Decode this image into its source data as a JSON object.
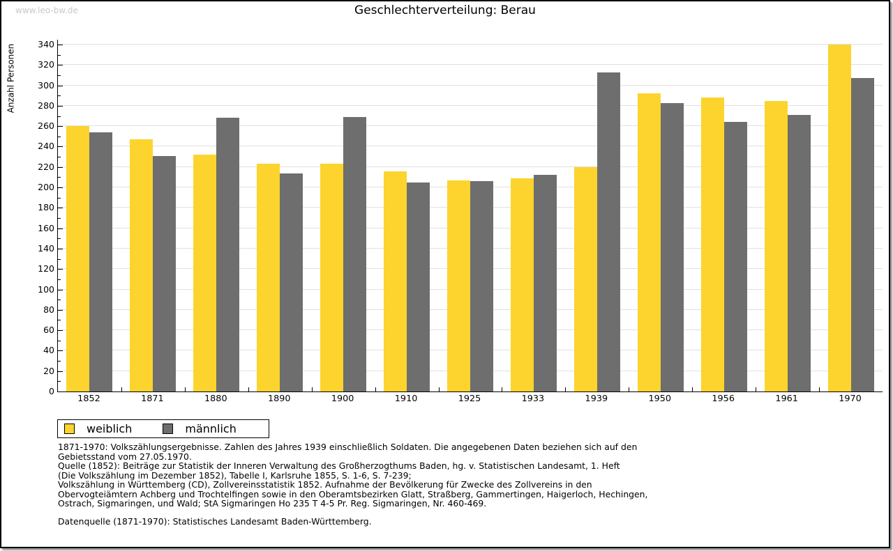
{
  "page": {
    "watermark": "www.leo-bw.de",
    "title": "Geschlechterverteilung: Berau"
  },
  "chart_data": {
    "type": "bar",
    "title": "Geschlechterverteilung: Berau",
    "xlabel": "",
    "ylabel": "Anzahl Personen",
    "ylim": [
      0,
      340
    ],
    "ytick_major": 20,
    "ytick_minor": 10,
    "grid": true,
    "legend_position": "bottom-left",
    "categories": [
      "1852",
      "1871",
      "1880",
      "1890",
      "1900",
      "1910",
      "1925",
      "1933",
      "1939",
      "1950",
      "1956",
      "1961",
      "1970"
    ],
    "series": [
      {
        "name": "weiblich",
        "color": "#fcd42d",
        "values": [
          260,
          247,
          232,
          223,
          223,
          216,
          207,
          209,
          220,
          292,
          288,
          285,
          340
        ]
      },
      {
        "name": "männlich",
        "color": "#6e6e6e",
        "values": [
          254,
          231,
          268,
          214,
          269,
          205,
          206,
          212,
          313,
          283,
          264,
          271,
          307
        ]
      }
    ]
  },
  "legend": {
    "items": [
      {
        "label": "weiblich",
        "color": "#fcd42d"
      },
      {
        "label": "männlich",
        "color": "#6e6e6e"
      }
    ]
  },
  "colors": {
    "axis": "#000000",
    "gridline": "#e0e0e0",
    "watermark": "#c9c9c9"
  },
  "notes": {
    "lines": [
      "1871-1970: Volkszählungsergebnisse. Zahlen des Jahres 1939 einschließlich Soldaten. Die angegebenen Daten beziehen sich auf den",
      "Gebietsstand vom 27.05.1970.",
      "Quelle (1852): Beiträge zur Statistik der Inneren Verwaltung des Großherzogthums Baden, hg. v. Statistischen Landesamt, 1. Heft",
      "(Die Volkszählung im Dezember 1852), Tabelle I, Karlsruhe 1855, S. 1-6, S. 7-239;",
      "Volkszählung in Württemberg (CD), Zollvereinsstatistik 1852. Aufnahme der Bevölkerung für Zwecke des Zollvereins in den",
      "Obervogteiämtern Achberg und Trochtelfingen sowie in den Oberamtsbezirken Glatt, Straßberg, Gammertingen, Haigerloch, Hechingen,",
      "Ostrach, Sigmaringen, und Wald; StA Sigmaringen Ho 235 T 4-5 Pr. Reg. Sigmaringen, Nr. 460-469."
    ],
    "source": "Datenquelle (1871-1970): Statistisches Landesamt Baden-Württemberg."
  }
}
